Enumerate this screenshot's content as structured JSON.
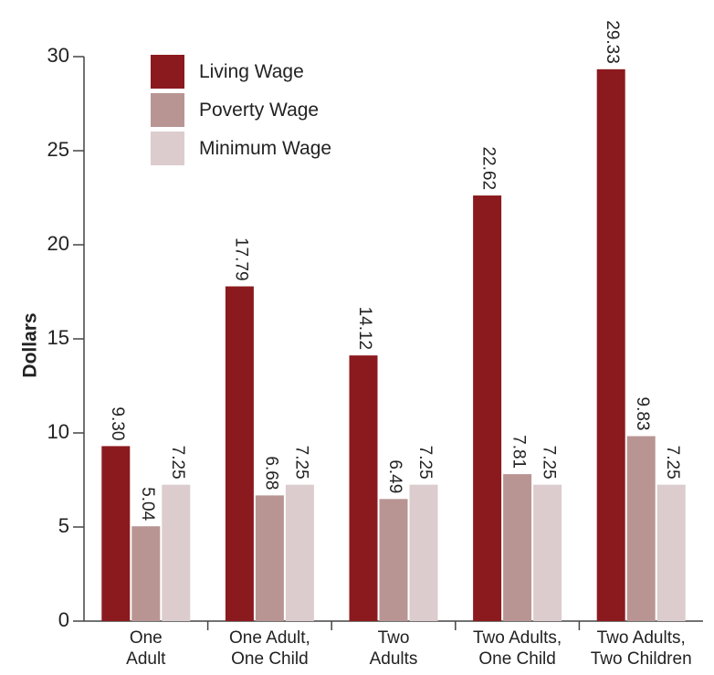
{
  "chart_data": {
    "type": "bar",
    "title": "",
    "xlabel": "",
    "ylabel": "Dollars",
    "ylim": [
      0,
      30
    ],
    "yticks": [
      0,
      5,
      10,
      15,
      20,
      25,
      30
    ],
    "grid": false,
    "legend_position": "top-left",
    "categories": [
      [
        "One",
        "Adult"
      ],
      [
        "One Adult,",
        "One Child"
      ],
      [
        "Two",
        "Adults"
      ],
      [
        "Two Adults,",
        "One Child"
      ],
      [
        "Two Adults,",
        "Two Children"
      ]
    ],
    "series": [
      {
        "name": "Living Wage",
        "color": "#8b1a1e",
        "values": [
          9.3,
          17.79,
          14.12,
          22.62,
          29.33
        ],
        "labels": [
          "9.30",
          "17.79",
          "14.12",
          "22.62",
          "29.33"
        ]
      },
      {
        "name": "Poverty Wage",
        "color": "#b89593",
        "values": [
          5.04,
          6.68,
          6.49,
          7.81,
          9.83
        ],
        "labels": [
          "5.04",
          "6.68",
          "6.49",
          "7.81",
          "9.83"
        ]
      },
      {
        "name": "Minimum Wage",
        "color": "#dccccd",
        "values": [
          7.25,
          7.25,
          7.25,
          7.25,
          7.25
        ],
        "labels": [
          "7.25",
          "7.25",
          "7.25",
          "7.25",
          "7.25"
        ]
      }
    ]
  }
}
